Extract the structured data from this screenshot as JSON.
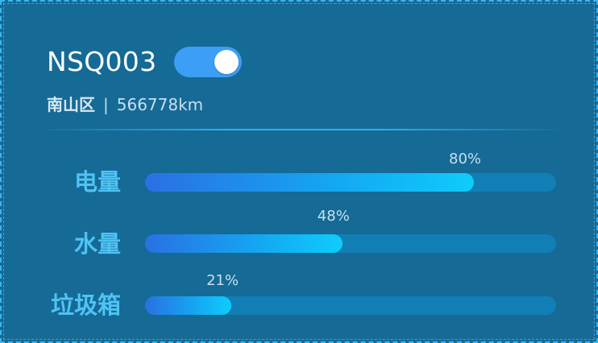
{
  "device": {
    "id": "NSQ003",
    "toggle_on": true,
    "district": "南山区",
    "separator": "|",
    "distance": "566778km"
  },
  "metrics": [
    {
      "label": "电量",
      "percent": 80,
      "percent_text": "80%"
    },
    {
      "label": "水量",
      "percent": 48,
      "percent_text": "48%"
    },
    {
      "label": "垃圾箱",
      "percent": 21,
      "percent_text": "21%"
    }
  ],
  "colors": {
    "card_background": "#156a96",
    "card_border": "#3ab4ee",
    "toggle_on": "#3d9ef5",
    "label_text": "#4fc3f3",
    "track": "#117fb6",
    "fill_start": "#2a70e3",
    "fill_end": "#0fccfb"
  }
}
